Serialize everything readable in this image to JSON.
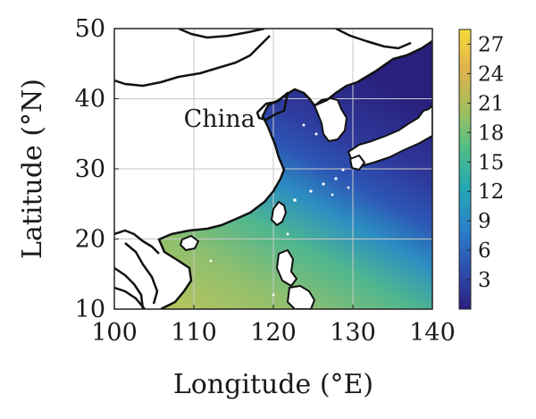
{
  "chart_data": {
    "type": "heatmap",
    "title": "",
    "xlabel": "Longitude (°E)",
    "ylabel": "Latitude (°N)",
    "xlim": [
      100,
      140
    ],
    "ylim": [
      10,
      50
    ],
    "x_ticks": [
      "100",
      "110",
      "120",
      "130",
      "140"
    ],
    "y_ticks": [
      "10",
      "20",
      "30",
      "40",
      "50"
    ],
    "grid": true,
    "annotation": "China",
    "annotation_lonlat": [
      123,
      37
    ],
    "colorbar": {
      "range": [
        0,
        28.5
      ],
      "ticks": [
        "3",
        "6",
        "9",
        "12",
        "15",
        "18",
        "21",
        "24",
        "27"
      ],
      "colormap": [
        "#2b1f7e",
        "#2d4fb0",
        "#2a7fc9",
        "#23a8b5",
        "#52be84",
        "#a6bf5c",
        "#e0b14d",
        "#f6dc3a"
      ]
    },
    "field_description": "Sea-surface values increase from ~0 in the northeast (Sea of Japan, Bohai) to ~20 in the southwest (South China Sea).",
    "sample_values": [
      {
        "lon": 138,
        "lat": 45,
        "value": 1
      },
      {
        "lon": 130,
        "lat": 38,
        "value": 2
      },
      {
        "lon": 125,
        "lat": 33,
        "value": 4
      },
      {
        "lon": 128,
        "lat": 28,
        "value": 9
      },
      {
        "lon": 135,
        "lat": 25,
        "value": 13
      },
      {
        "lon": 125,
        "lat": 20,
        "value": 16
      },
      {
        "lon": 115,
        "lat": 17,
        "value": 18
      },
      {
        "lon": 110,
        "lat": 12,
        "value": 20
      }
    ]
  }
}
